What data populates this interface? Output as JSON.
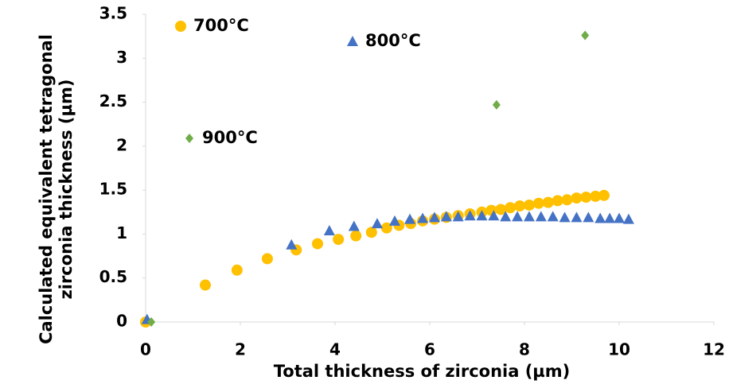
{
  "chart_data": {
    "type": "scatter",
    "x_label": "Total thickness of zirconia (µm)",
    "y_label": "Calculated equivalent tetragonal zirconia thickness (µm)",
    "xlim": [
      0,
      12
    ],
    "xticks": [
      0,
      2,
      4,
      6,
      8,
      10,
      12
    ],
    "ylim": [
      0,
      3.5
    ],
    "yticks": [
      0,
      0.5,
      1,
      1.5,
      2,
      2.5,
      3,
      3.5
    ],
    "grid": false,
    "series": [
      {
        "name": "700°C",
        "color": "#FFC000",
        "marker": "circle",
        "x": [
          0,
          1.26,
          1.93,
          2.57,
          3.18,
          3.63,
          4.07,
          4.44,
          4.77,
          5.09,
          5.35,
          5.6,
          5.85,
          6.1,
          6.35,
          6.6,
          6.85,
          7.1,
          7.3,
          7.5,
          7.7,
          7.9,
          8.1,
          8.3,
          8.5,
          8.7,
          8.9,
          9.1,
          9.3,
          9.5,
          9.68
        ],
        "values": [
          0,
          0.42,
          0.59,
          0.72,
          0.82,
          0.89,
          0.94,
          0.98,
          1.02,
          1.07,
          1.1,
          1.12,
          1.15,
          1.17,
          1.19,
          1.21,
          1.23,
          1.25,
          1.27,
          1.28,
          1.3,
          1.32,
          1.33,
          1.35,
          1.36,
          1.38,
          1.39,
          1.41,
          1.42,
          1.43,
          1.44
        ]
      },
      {
        "name": "800°C",
        "color": "#4472C4",
        "marker": "triangle",
        "x": [
          0.03,
          3.08,
          3.88,
          4.4,
          4.89,
          5.26,
          5.58,
          5.85,
          6.1,
          6.35,
          6.6,
          6.85,
          7.1,
          7.35,
          7.6,
          7.85,
          8.1,
          8.35,
          8.6,
          8.85,
          9.1,
          9.35,
          9.6,
          9.8,
          10.0,
          10.2
        ],
        "values": [
          0.03,
          0.88,
          1.04,
          1.09,
          1.12,
          1.15,
          1.17,
          1.18,
          1.19,
          1.2,
          1.2,
          1.21,
          1.21,
          1.21,
          1.2,
          1.2,
          1.2,
          1.2,
          1.2,
          1.19,
          1.19,
          1.19,
          1.18,
          1.18,
          1.18,
          1.17
        ]
      },
      {
        "name": "900°C",
        "color": "#70AD47",
        "marker": "diamond",
        "x": [
          0.12,
          7.41,
          9.28
        ],
        "values": [
          0,
          2.47,
          3.26
        ]
      }
    ]
  }
}
